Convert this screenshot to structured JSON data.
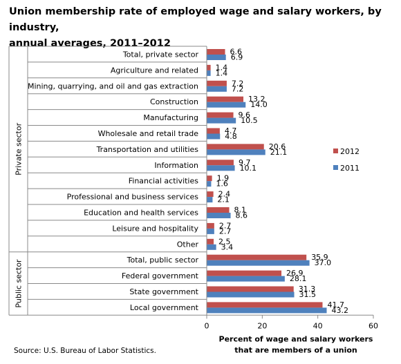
{
  "title_line1": "Union membership rate of employed wage and salary workers, by industry,",
  "title_line2": "annual averages, 2011–2012",
  "source": "Source: U.S. Bureau of Labor Statistics.",
  "chart_data": {
    "type": "bar",
    "orientation": "horizontal",
    "title": "Union membership rate of employed wage and salary workers, by industry, annual averages, 2011–2012",
    "xlabel": "Percent of wage and salary workers that are members of a union",
    "xlabel_lines": [
      "Percent of wage and salary workers",
      "that are members of a union"
    ],
    "xlim": [
      0,
      60
    ],
    "xticks": [
      0,
      20,
      40,
      60
    ],
    "grid": false,
    "legend_position": "right",
    "groups": [
      {
        "name": "Private sector",
        "categories": [
          "Total, private sector",
          "Agriculture and related",
          "Mining, quarrying, and oil and gas extraction",
          "Construction",
          "Manufacturing",
          "Wholesale and retail trade",
          "Transportation and utilities",
          "Information",
          "Financial activities",
          "Professional and business services",
          "Education and health services",
          "Leisure and hospitality",
          "Other"
        ]
      },
      {
        "name": "Public sector",
        "categories": [
          "Total, public sector",
          "Federal government",
          "State government",
          "Local government"
        ]
      }
    ],
    "categories": [
      "Total, private sector",
      "Agriculture and related",
      "Mining, quarrying, and oil and gas extraction",
      "Construction",
      "Manufacturing",
      "Wholesale and retail trade",
      "Transportation and utilities",
      "Information",
      "Financial activities",
      "Professional and business services",
      "Education and health services",
      "Leisure and hospitality",
      "Other",
      "Total, public sector",
      "Federal government",
      "State government",
      "Local government"
    ],
    "series": [
      {
        "name": "2012",
        "color": "#c0504d",
        "values": [
          6.6,
          1.4,
          7.2,
          13.2,
          9.6,
          4.7,
          20.6,
          9.7,
          1.9,
          2.4,
          8.1,
          2.7,
          2.5,
          35.9,
          26.9,
          31.3,
          41.7
        ]
      },
      {
        "name": "2011",
        "color": "#4f81bd",
        "values": [
          6.9,
          1.4,
          7.2,
          14.0,
          10.5,
          4.8,
          21.1,
          10.1,
          1.6,
          2.1,
          8.6,
          2.7,
          3.4,
          37.0,
          28.1,
          31.5,
          43.2
        ]
      }
    ]
  }
}
